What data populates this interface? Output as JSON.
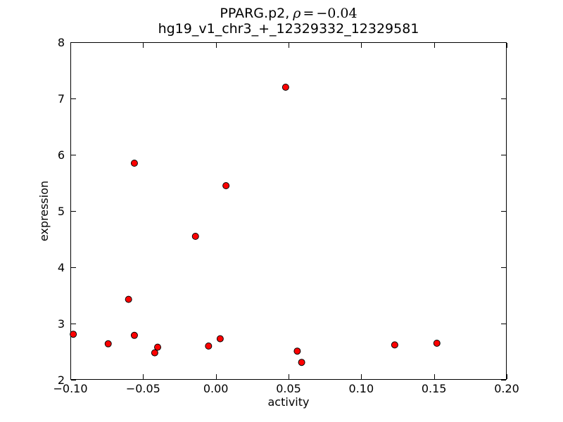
{
  "figure": {
    "title": {
      "prefix": "PPARG.p2,",
      "rho": "ρ",
      "equals": "=",
      "value": "−0.04"
    },
    "subtitle": "hg19_v1_chr3_+_12329332_12329581"
  },
  "chart_data": {
    "type": "scatter",
    "title": "PPARG.p2, ρ = −0.04",
    "subtitle": "hg19_v1_chr3_+_12329332_12329581",
    "xlabel": "activity",
    "ylabel": "expression",
    "xlim": [
      -0.1,
      0.2
    ],
    "ylim": [
      2,
      8
    ],
    "xticks": [
      -0.1,
      -0.05,
      0.0,
      0.05,
      0.1,
      0.15,
      0.2
    ],
    "xtick_labels": [
      "−0.10",
      "−0.05",
      "0.00",
      "0.05",
      "0.10",
      "0.15",
      "0.20"
    ],
    "yticks": [
      2,
      3,
      4,
      5,
      6,
      7,
      8
    ],
    "ytick_labels": [
      "2",
      "3",
      "4",
      "5",
      "6",
      "7",
      "8"
    ],
    "grid": false,
    "legend": false,
    "marker": {
      "shape": "circle",
      "fill": "#ff0000",
      "edge": "#000000",
      "radius_px": 4.5
    },
    "colors": {
      "background": "#ffffff",
      "axis": "#000000",
      "text": "#000000",
      "marker_fill": "#ff0000",
      "marker_edge": "#000000"
    },
    "points": [
      {
        "x": -0.098,
        "y": 2.81
      },
      {
        "x": -0.074,
        "y": 2.64
      },
      {
        "x": -0.06,
        "y": 3.43
      },
      {
        "x": -0.056,
        "y": 5.85
      },
      {
        "x": -0.056,
        "y": 2.79
      },
      {
        "x": -0.042,
        "y": 2.48
      },
      {
        "x": -0.04,
        "y": 2.58
      },
      {
        "x": -0.014,
        "y": 4.55
      },
      {
        "x": -0.005,
        "y": 2.6
      },
      {
        "x": 0.003,
        "y": 2.73
      },
      {
        "x": 0.007,
        "y": 5.45
      },
      {
        "x": 0.048,
        "y": 7.2
      },
      {
        "x": 0.056,
        "y": 2.51
      },
      {
        "x": 0.059,
        "y": 2.31
      },
      {
        "x": 0.123,
        "y": 2.62
      },
      {
        "x": 0.152,
        "y": 2.65
      }
    ]
  }
}
